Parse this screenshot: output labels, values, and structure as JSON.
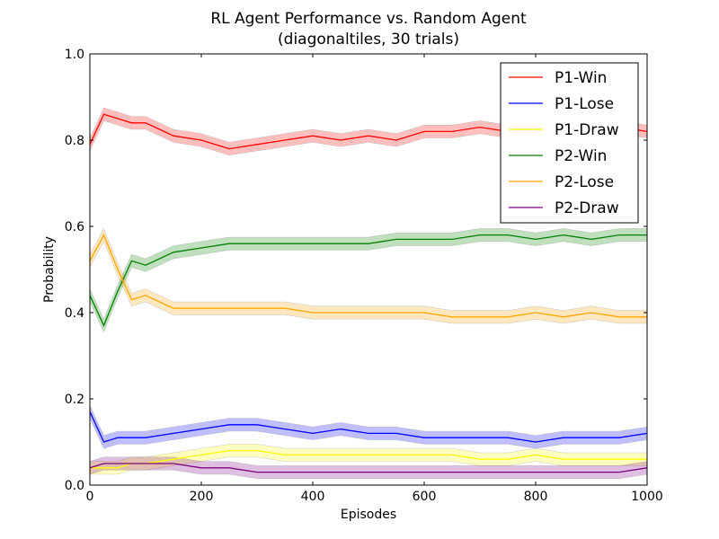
{
  "chart_data": {
    "type": "line",
    "title": "RL Agent Performance vs. Random Agent",
    "subtitle": "(diagonaltiles, 30 trials)",
    "xlabel": "Episodes",
    "ylabel": "Probability",
    "xlim": [
      0,
      1000
    ],
    "ylim": [
      0.0,
      1.0
    ],
    "x_ticks": [
      "0",
      "200",
      "400",
      "600",
      "800",
      "1000"
    ],
    "y_ticks": [
      "0.0",
      "0.2",
      "0.4",
      "0.6",
      "0.8",
      "1.0"
    ],
    "legend_position": "top-right",
    "grid": false,
    "shaded_band": "±0.015 around each series",
    "x": [
      0,
      25,
      50,
      75,
      100,
      150,
      200,
      250,
      300,
      350,
      400,
      450,
      500,
      550,
      600,
      650,
      700,
      750,
      800,
      850,
      900,
      950,
      1000
    ],
    "series": [
      {
        "name": "P1-Win",
        "color": "#ff0000",
        "values": [
          0.79,
          0.86,
          0.85,
          0.84,
          0.84,
          0.81,
          0.8,
          0.78,
          0.79,
          0.8,
          0.81,
          0.8,
          0.81,
          0.8,
          0.82,
          0.82,
          0.83,
          0.82,
          0.83,
          0.84,
          0.83,
          0.83,
          0.82
        ]
      },
      {
        "name": "P1-Lose",
        "color": "#0000ff",
        "values": [
          0.17,
          0.1,
          0.11,
          0.11,
          0.11,
          0.12,
          0.13,
          0.14,
          0.14,
          0.13,
          0.12,
          0.13,
          0.12,
          0.12,
          0.11,
          0.11,
          0.11,
          0.11,
          0.1,
          0.11,
          0.11,
          0.11,
          0.12
        ]
      },
      {
        "name": "P1-Draw",
        "color": "#ffff00",
        "values": [
          0.04,
          0.04,
          0.04,
          0.05,
          0.05,
          0.06,
          0.07,
          0.08,
          0.08,
          0.07,
          0.07,
          0.07,
          0.07,
          0.07,
          0.07,
          0.07,
          0.06,
          0.06,
          0.07,
          0.06,
          0.06,
          0.06,
          0.06
        ]
      },
      {
        "name": "P2-Win",
        "color": "#008000",
        "values": [
          0.44,
          0.37,
          0.45,
          0.52,
          0.51,
          0.54,
          0.55,
          0.56,
          0.56,
          0.56,
          0.56,
          0.56,
          0.56,
          0.57,
          0.57,
          0.57,
          0.58,
          0.58,
          0.57,
          0.58,
          0.57,
          0.58,
          0.58
        ]
      },
      {
        "name": "P2-Lose",
        "color": "#ffa500",
        "values": [
          0.52,
          0.58,
          0.5,
          0.43,
          0.44,
          0.41,
          0.41,
          0.41,
          0.41,
          0.41,
          0.4,
          0.4,
          0.4,
          0.4,
          0.4,
          0.39,
          0.39,
          0.39,
          0.4,
          0.39,
          0.4,
          0.39,
          0.39
        ]
      },
      {
        "name": "P2-Draw",
        "color": "#800080",
        "values": [
          0.04,
          0.05,
          0.05,
          0.05,
          0.05,
          0.05,
          0.04,
          0.04,
          0.03,
          0.03,
          0.03,
          0.03,
          0.03,
          0.03,
          0.03,
          0.03,
          0.03,
          0.03,
          0.03,
          0.03,
          0.03,
          0.03,
          0.04
        ]
      }
    ]
  }
}
